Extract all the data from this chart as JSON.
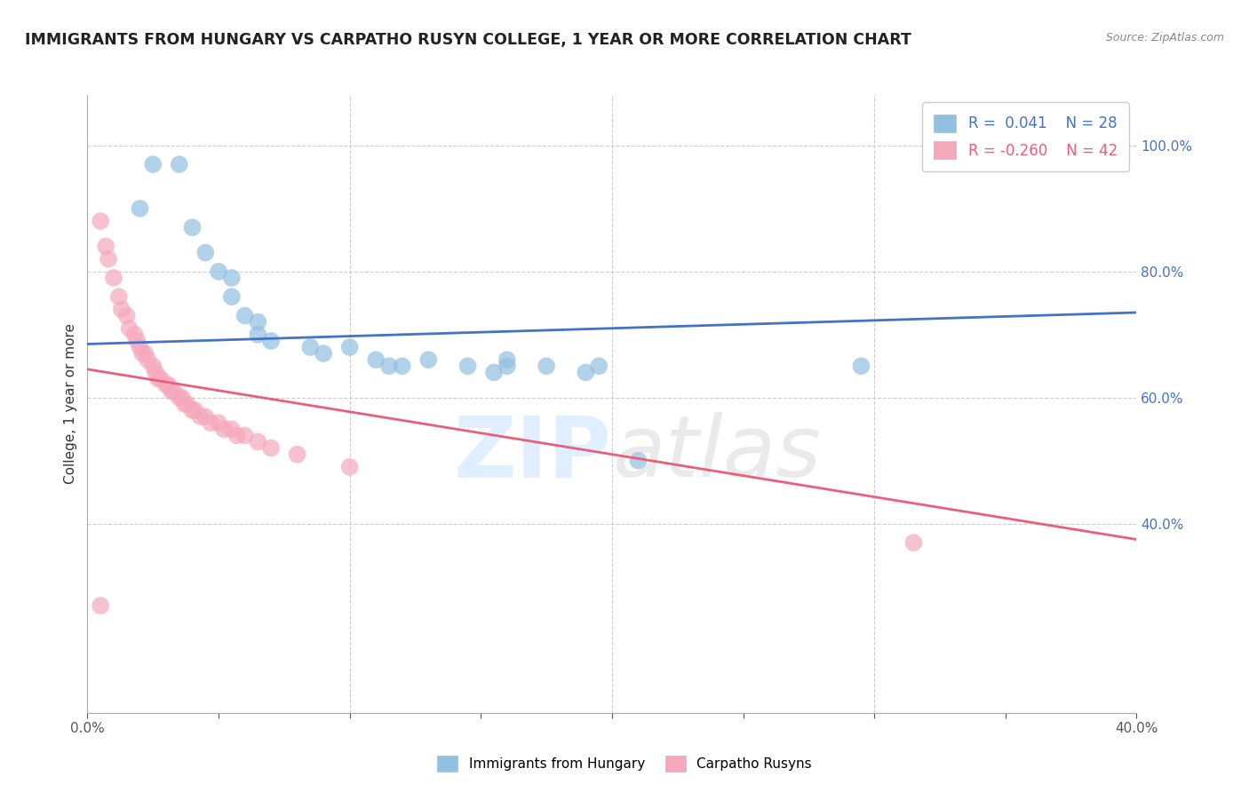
{
  "title": "IMMIGRANTS FROM HUNGARY VS CARPATHO RUSYN COLLEGE, 1 YEAR OR MORE CORRELATION CHART",
  "source_text": "Source: ZipAtlas.com",
  "ylabel": "College, 1 year or more",
  "xlim": [
    0.0,
    0.4
  ],
  "ylim": [
    0.1,
    1.08
  ],
  "xtick_vals": [
    0.0,
    0.05,
    0.1,
    0.15,
    0.2,
    0.25,
    0.3,
    0.35,
    0.4
  ],
  "xtick_labels": [
    "0.0%",
    "",
    "",
    "",
    "",
    "",
    "",
    "",
    "40.0%"
  ],
  "ytick_right_labels": [
    "100.0%",
    "80.0%",
    "60.0%",
    "40.0%"
  ],
  "ytick_right_vals": [
    1.0,
    0.8,
    0.6,
    0.4
  ],
  "blue_color": "#92C0E0",
  "pink_color": "#F5A8BC",
  "blue_line_color": "#4472C4",
  "pink_line_color": "#E8607A",
  "grid_color": "#CCCCCC",
  "watermark_color": "#E8E8E8",
  "legend_r_blue": "0.041",
  "legend_n_blue": "28",
  "legend_r_pink": "-0.260",
  "legend_n_pink": "42",
  "legend_label_blue": "Immigrants from Hungary",
  "legend_label_pink": "Carpatho Rusyns",
  "blue_scatter_x": [
    0.025,
    0.035,
    0.02,
    0.04,
    0.045,
    0.05,
    0.055,
    0.055,
    0.06,
    0.065,
    0.065,
    0.07,
    0.085,
    0.09,
    0.1,
    0.11,
    0.115,
    0.12,
    0.13,
    0.145,
    0.155,
    0.16,
    0.16,
    0.175,
    0.19,
    0.195,
    0.21,
    0.295
  ],
  "blue_scatter_y": [
    0.97,
    0.97,
    0.9,
    0.87,
    0.83,
    0.8,
    0.79,
    0.76,
    0.73,
    0.72,
    0.7,
    0.69,
    0.68,
    0.67,
    0.68,
    0.66,
    0.65,
    0.65,
    0.66,
    0.65,
    0.64,
    0.65,
    0.66,
    0.65,
    0.64,
    0.65,
    0.5,
    0.65
  ],
  "pink_scatter_x": [
    0.005,
    0.007,
    0.008,
    0.01,
    0.012,
    0.013,
    0.015,
    0.016,
    0.018,
    0.019,
    0.02,
    0.021,
    0.022,
    0.023,
    0.025,
    0.026,
    0.027,
    0.028,
    0.03,
    0.031,
    0.032,
    0.033,
    0.035,
    0.036,
    0.037,
    0.038,
    0.04,
    0.041,
    0.043,
    0.045,
    0.047,
    0.05,
    0.052,
    0.055,
    0.057,
    0.06,
    0.065,
    0.07,
    0.08,
    0.1,
    0.315,
    0.005
  ],
  "pink_scatter_y": [
    0.88,
    0.84,
    0.82,
    0.79,
    0.76,
    0.74,
    0.73,
    0.71,
    0.7,
    0.69,
    0.68,
    0.67,
    0.67,
    0.66,
    0.65,
    0.64,
    0.63,
    0.63,
    0.62,
    0.62,
    0.61,
    0.61,
    0.6,
    0.6,
    0.59,
    0.59,
    0.58,
    0.58,
    0.57,
    0.57,
    0.56,
    0.56,
    0.55,
    0.55,
    0.54,
    0.54,
    0.53,
    0.52,
    0.51,
    0.49,
    0.37,
    0.27
  ],
  "blue_trend_x": [
    0.0,
    0.4
  ],
  "blue_trend_y": [
    0.685,
    0.735
  ],
  "pink_trend_x": [
    0.0,
    0.4
  ],
  "pink_trend_y": [
    0.645,
    0.375
  ]
}
